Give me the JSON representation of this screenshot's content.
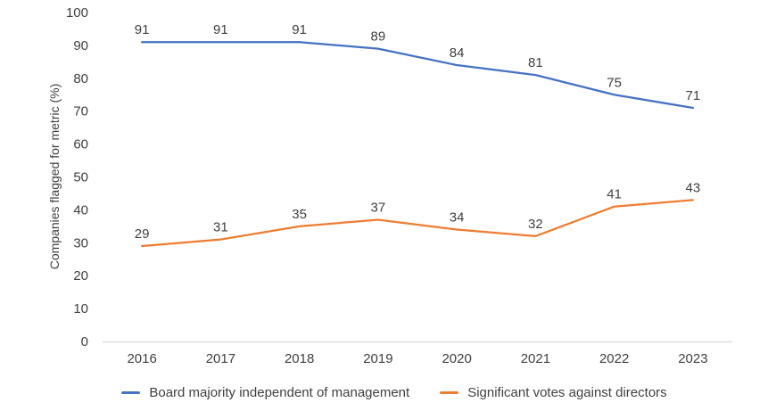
{
  "chart_data": {
    "type": "line",
    "categories": [
      "2016",
      "2017",
      "2018",
      "2019",
      "2020",
      "2021",
      "2022",
      "2023"
    ],
    "series": [
      {
        "name": "Board majority independent of management",
        "color": "#4472C4",
        "values": [
          91,
          91,
          91,
          89,
          84,
          81,
          75,
          71
        ]
      },
      {
        "name": "Significant votes against directors",
        "color": "#ED7D31",
        "values": [
          29,
          31,
          35,
          37,
          34,
          32,
          41,
          43
        ]
      }
    ],
    "title": "",
    "xlabel": "",
    "ylabel": "Companies flagged for metric (%)",
    "ylim": [
      0,
      100
    ],
    "ytick_step": 10,
    "grid": false,
    "data_labels": true,
    "legend_position": "bottom",
    "axis_line_color": "#D9D9D9",
    "text_color": "#404040"
  }
}
